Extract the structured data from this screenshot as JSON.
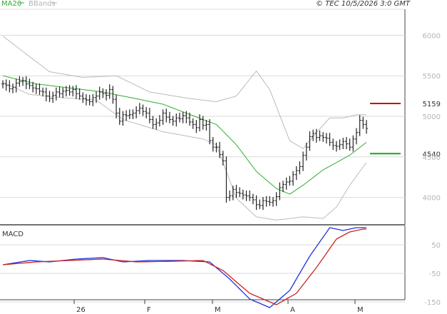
{
  "header": {
    "legend_ma": "MA20",
    "legend_bb": "BBands",
    "copyright": "© TEC 10/5/2026 3:0 GMT"
  },
  "colors": {
    "price_bars": "#222222",
    "ma20": "#33aa33",
    "bbands": "#bbbbbb",
    "macd": "#2233dd",
    "signal": "#cc2222",
    "resistance": "#cc0000",
    "support": "#11aa11",
    "grid": "#d9d9d9",
    "axis_text": "#b5b5b5"
  },
  "chart_data": [
    {
      "type": "ohlc",
      "panel": "price",
      "y_ticks": [
        "6000",
        "5500",
        "5000",
        "4500",
        "4000"
      ],
      "ylim": [
        3750,
        6250
      ],
      "x_ticks": [
        "26",
        "F",
        "M",
        "A",
        "M"
      ],
      "levels": [
        {
          "label": "5159",
          "value": 5159,
          "color": "#cc0000"
        },
        {
          "label": "4540",
          "value": 4540,
          "color": "#11aa11"
        }
      ],
      "closes": [
        5400,
        5380,
        5340,
        5360,
        5410,
        5430,
        5440,
        5400,
        5380,
        5350,
        5340,
        5310,
        5300,
        5250,
        5220,
        5260,
        5300,
        5280,
        5310,
        5320,
        5300,
        5330,
        5280,
        5250,
        5220,
        5200,
        5180,
        5230,
        5250,
        5300,
        5280,
        5260,
        5330,
        5210,
        5040,
        4940,
        5020,
        5010,
        5020,
        5040,
        5070,
        5100,
        5060,
        5040,
        4960,
        4900,
        4920,
        4950,
        5040,
        4990,
        4960,
        4940,
        4980,
        4970,
        5010,
        4980,
        4930,
        4900,
        4860,
        4960,
        4890,
        4900,
        4700,
        4620,
        4620,
        4530,
        4450,
        4000,
        4020,
        4100,
        4060,
        4050,
        4030,
        4020,
        4000,
        3970,
        3910,
        3900,
        3960,
        3950,
        3940,
        3960,
        4010,
        4120,
        4160,
        4190,
        4200,
        4280,
        4330,
        4380,
        4520,
        4620,
        4750,
        4790,
        4740,
        4760,
        4740,
        4730,
        4680,
        4640,
        4630,
        4650,
        4690,
        4660,
        4620,
        4720,
        4800,
        4950,
        4900,
        4850
      ],
      "ma20": [
        5456,
        5434,
        5412,
        5390,
        5368,
        5346,
        5324,
        5302,
        5280,
        5258,
        5236,
        5214,
        5192,
        5170,
        5148,
        5126,
        5104,
        5082,
        5060,
        5038,
        5016,
        4994,
        4972,
        4950,
        4928,
        4906,
        4884,
        4862,
        4840,
        4818,
        4796,
        4774,
        4752,
        4730,
        4708,
        4686,
        4664,
        4642,
        4620,
        4598,
        4576,
        4554,
        4532,
        4510,
        4488,
        4466,
        4444,
        4422,
        4400,
        4378,
        4356,
        4334,
        4312,
        4290,
        4268,
        4246,
        4224,
        4202,
        4180,
        4158,
        4136,
        4114,
        4092,
        4070,
        4048,
        4026,
        4004,
        3982,
        3960,
        3938,
        3916,
        3894,
        3872,
        3850,
        3828,
        3806,
        3784,
        3762,
        3740,
        3718,
        3696,
        3674,
        3652,
        3630,
        3608,
        3586,
        3564,
        3542,
        3520,
        3498,
        3476,
        3454,
        3432,
        3410,
        3388,
        3366,
        3344,
        3322,
        3300,
        3278,
        3256,
        3234,
        3212,
        3190,
        3168,
        3146,
        3124,
        3102,
        3080,
        3058
      ],
      "ma20_anchors": [
        [
          0,
          5500
        ],
        [
          10,
          5400
        ],
        [
          30,
          5300
        ],
        [
          48,
          5150
        ],
        [
          60,
          4960
        ],
        [
          64,
          4900
        ],
        [
          70,
          4650
        ],
        [
          76,
          4320
        ],
        [
          82,
          4110
        ],
        [
          86,
          4040
        ],
        [
          90,
          4150
        ],
        [
          96,
          4340
        ],
        [
          104,
          4520
        ],
        [
          109,
          4680
        ]
      ],
      "bb_upper_anchors": [
        [
          0,
          5990
        ],
        [
          6,
          5800
        ],
        [
          14,
          5550
        ],
        [
          24,
          5480
        ],
        [
          34,
          5500
        ],
        [
          44,
          5300
        ],
        [
          56,
          5220
        ],
        [
          64,
          5180
        ],
        [
          70,
          5250
        ],
        [
          76,
          5560
        ],
        [
          80,
          5330
        ],
        [
          86,
          4700
        ],
        [
          90,
          4600
        ],
        [
          94,
          4800
        ],
        [
          98,
          4980
        ],
        [
          102,
          4980
        ],
        [
          106,
          5020
        ]
      ],
      "bb_lower_anchors": [
        [
          0,
          5420
        ],
        [
          8,
          5270
        ],
        [
          18,
          5230
        ],
        [
          28,
          5200
        ],
        [
          36,
          4960
        ],
        [
          48,
          4810
        ],
        [
          60,
          4720
        ],
        [
          64,
          4650
        ],
        [
          70,
          3990
        ],
        [
          76,
          3760
        ],
        [
          82,
          3720
        ],
        [
          90,
          3760
        ],
        [
          96,
          3740
        ],
        [
          100,
          3880
        ],
        [
          104,
          4150
        ],
        [
          109,
          4430
        ]
      ]
    },
    {
      "type": "line",
      "panel": "macd",
      "title": "MACD",
      "y_ticks": [
        "50",
        "-50",
        "-150"
      ],
      "ylim": [
        -210,
        150
      ],
      "series": [
        {
          "color": "#2233dd",
          "anchors": [
            [
              0,
              -20
            ],
            [
              8,
              -5
            ],
            [
              14,
              -10
            ],
            [
              22,
              0
            ],
            [
              30,
              5
            ],
            [
              36,
              -10
            ],
            [
              44,
              -5
            ],
            [
              54,
              -5
            ],
            [
              62,
              -10
            ],
            [
              68,
              -70
            ],
            [
              74,
              -140
            ],
            [
              80,
              -170
            ],
            [
              86,
              -110
            ],
            [
              92,
              10
            ],
            [
              98,
              110
            ],
            [
              102,
              100
            ],
            [
              106,
              110
            ]
          ]
        },
        {
          "color": "#cc2222",
          "anchors": [
            [
              0,
              -20
            ],
            [
              10,
              -10
            ],
            [
              20,
              -5
            ],
            [
              30,
              0
            ],
            [
              40,
              -10
            ],
            [
              50,
              -8
            ],
            [
              60,
              -5
            ],
            [
              66,
              -40
            ],
            [
              74,
              -120
            ],
            [
              82,
              -160
            ],
            [
              88,
              -120
            ],
            [
              94,
              -30
            ],
            [
              100,
              70
            ],
            [
              104,
              95
            ],
            [
              108,
              105
            ]
          ]
        }
      ]
    }
  ]
}
